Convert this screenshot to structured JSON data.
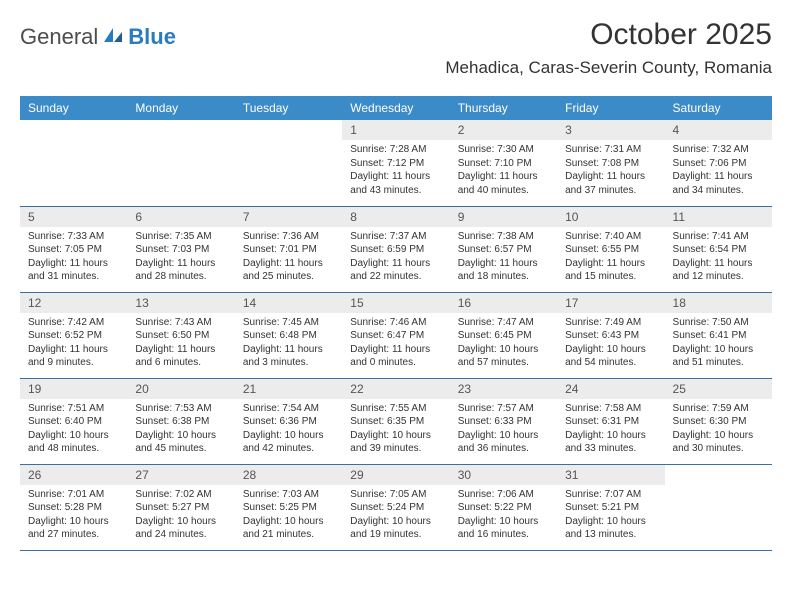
{
  "brand": {
    "part1": "General",
    "part2": "Blue"
  },
  "title": "October 2025",
  "location": "Mehadica, Caras-Severin County, Romania",
  "colors": {
    "header_bg": "#3b8bc9",
    "header_fg": "#ffffff",
    "daynum_bg": "#ececec",
    "border": "#3b6f9e",
    "logo_gray": "#4d4d4d",
    "logo_blue": "#2a7bbf"
  },
  "weekdays": [
    "Sunday",
    "Monday",
    "Tuesday",
    "Wednesday",
    "Thursday",
    "Friday",
    "Saturday"
  ],
  "weeks": [
    [
      {
        "empty": true
      },
      {
        "empty": true
      },
      {
        "empty": true
      },
      {
        "day": "1",
        "sunrise": "Sunrise: 7:28 AM",
        "sunset": "Sunset: 7:12 PM",
        "daylight1": "Daylight: 11 hours",
        "daylight2": "and 43 minutes."
      },
      {
        "day": "2",
        "sunrise": "Sunrise: 7:30 AM",
        "sunset": "Sunset: 7:10 PM",
        "daylight1": "Daylight: 11 hours",
        "daylight2": "and 40 minutes."
      },
      {
        "day": "3",
        "sunrise": "Sunrise: 7:31 AM",
        "sunset": "Sunset: 7:08 PM",
        "daylight1": "Daylight: 11 hours",
        "daylight2": "and 37 minutes."
      },
      {
        "day": "4",
        "sunrise": "Sunrise: 7:32 AM",
        "sunset": "Sunset: 7:06 PM",
        "daylight1": "Daylight: 11 hours",
        "daylight2": "and 34 minutes."
      }
    ],
    [
      {
        "day": "5",
        "sunrise": "Sunrise: 7:33 AM",
        "sunset": "Sunset: 7:05 PM",
        "daylight1": "Daylight: 11 hours",
        "daylight2": "and 31 minutes."
      },
      {
        "day": "6",
        "sunrise": "Sunrise: 7:35 AM",
        "sunset": "Sunset: 7:03 PM",
        "daylight1": "Daylight: 11 hours",
        "daylight2": "and 28 minutes."
      },
      {
        "day": "7",
        "sunrise": "Sunrise: 7:36 AM",
        "sunset": "Sunset: 7:01 PM",
        "daylight1": "Daylight: 11 hours",
        "daylight2": "and 25 minutes."
      },
      {
        "day": "8",
        "sunrise": "Sunrise: 7:37 AM",
        "sunset": "Sunset: 6:59 PM",
        "daylight1": "Daylight: 11 hours",
        "daylight2": "and 22 minutes."
      },
      {
        "day": "9",
        "sunrise": "Sunrise: 7:38 AM",
        "sunset": "Sunset: 6:57 PM",
        "daylight1": "Daylight: 11 hours",
        "daylight2": "and 18 minutes."
      },
      {
        "day": "10",
        "sunrise": "Sunrise: 7:40 AM",
        "sunset": "Sunset: 6:55 PM",
        "daylight1": "Daylight: 11 hours",
        "daylight2": "and 15 minutes."
      },
      {
        "day": "11",
        "sunrise": "Sunrise: 7:41 AM",
        "sunset": "Sunset: 6:54 PM",
        "daylight1": "Daylight: 11 hours",
        "daylight2": "and 12 minutes."
      }
    ],
    [
      {
        "day": "12",
        "sunrise": "Sunrise: 7:42 AM",
        "sunset": "Sunset: 6:52 PM",
        "daylight1": "Daylight: 11 hours",
        "daylight2": "and 9 minutes."
      },
      {
        "day": "13",
        "sunrise": "Sunrise: 7:43 AM",
        "sunset": "Sunset: 6:50 PM",
        "daylight1": "Daylight: 11 hours",
        "daylight2": "and 6 minutes."
      },
      {
        "day": "14",
        "sunrise": "Sunrise: 7:45 AM",
        "sunset": "Sunset: 6:48 PM",
        "daylight1": "Daylight: 11 hours",
        "daylight2": "and 3 minutes."
      },
      {
        "day": "15",
        "sunrise": "Sunrise: 7:46 AM",
        "sunset": "Sunset: 6:47 PM",
        "daylight1": "Daylight: 11 hours",
        "daylight2": "and 0 minutes."
      },
      {
        "day": "16",
        "sunrise": "Sunrise: 7:47 AM",
        "sunset": "Sunset: 6:45 PM",
        "daylight1": "Daylight: 10 hours",
        "daylight2": "and 57 minutes."
      },
      {
        "day": "17",
        "sunrise": "Sunrise: 7:49 AM",
        "sunset": "Sunset: 6:43 PM",
        "daylight1": "Daylight: 10 hours",
        "daylight2": "and 54 minutes."
      },
      {
        "day": "18",
        "sunrise": "Sunrise: 7:50 AM",
        "sunset": "Sunset: 6:41 PM",
        "daylight1": "Daylight: 10 hours",
        "daylight2": "and 51 minutes."
      }
    ],
    [
      {
        "day": "19",
        "sunrise": "Sunrise: 7:51 AM",
        "sunset": "Sunset: 6:40 PM",
        "daylight1": "Daylight: 10 hours",
        "daylight2": "and 48 minutes."
      },
      {
        "day": "20",
        "sunrise": "Sunrise: 7:53 AM",
        "sunset": "Sunset: 6:38 PM",
        "daylight1": "Daylight: 10 hours",
        "daylight2": "and 45 minutes."
      },
      {
        "day": "21",
        "sunrise": "Sunrise: 7:54 AM",
        "sunset": "Sunset: 6:36 PM",
        "daylight1": "Daylight: 10 hours",
        "daylight2": "and 42 minutes."
      },
      {
        "day": "22",
        "sunrise": "Sunrise: 7:55 AM",
        "sunset": "Sunset: 6:35 PM",
        "daylight1": "Daylight: 10 hours",
        "daylight2": "and 39 minutes."
      },
      {
        "day": "23",
        "sunrise": "Sunrise: 7:57 AM",
        "sunset": "Sunset: 6:33 PM",
        "daylight1": "Daylight: 10 hours",
        "daylight2": "and 36 minutes."
      },
      {
        "day": "24",
        "sunrise": "Sunrise: 7:58 AM",
        "sunset": "Sunset: 6:31 PM",
        "daylight1": "Daylight: 10 hours",
        "daylight2": "and 33 minutes."
      },
      {
        "day": "25",
        "sunrise": "Sunrise: 7:59 AM",
        "sunset": "Sunset: 6:30 PM",
        "daylight1": "Daylight: 10 hours",
        "daylight2": "and 30 minutes."
      }
    ],
    [
      {
        "day": "26",
        "sunrise": "Sunrise: 7:01 AM",
        "sunset": "Sunset: 5:28 PM",
        "daylight1": "Daylight: 10 hours",
        "daylight2": "and 27 minutes."
      },
      {
        "day": "27",
        "sunrise": "Sunrise: 7:02 AM",
        "sunset": "Sunset: 5:27 PM",
        "daylight1": "Daylight: 10 hours",
        "daylight2": "and 24 minutes."
      },
      {
        "day": "28",
        "sunrise": "Sunrise: 7:03 AM",
        "sunset": "Sunset: 5:25 PM",
        "daylight1": "Daylight: 10 hours",
        "daylight2": "and 21 minutes."
      },
      {
        "day": "29",
        "sunrise": "Sunrise: 7:05 AM",
        "sunset": "Sunset: 5:24 PM",
        "daylight1": "Daylight: 10 hours",
        "daylight2": "and 19 minutes."
      },
      {
        "day": "30",
        "sunrise": "Sunrise: 7:06 AM",
        "sunset": "Sunset: 5:22 PM",
        "daylight1": "Daylight: 10 hours",
        "daylight2": "and 16 minutes."
      },
      {
        "day": "31",
        "sunrise": "Sunrise: 7:07 AM",
        "sunset": "Sunset: 5:21 PM",
        "daylight1": "Daylight: 10 hours",
        "daylight2": "and 13 minutes."
      },
      {
        "empty": true
      }
    ]
  ]
}
